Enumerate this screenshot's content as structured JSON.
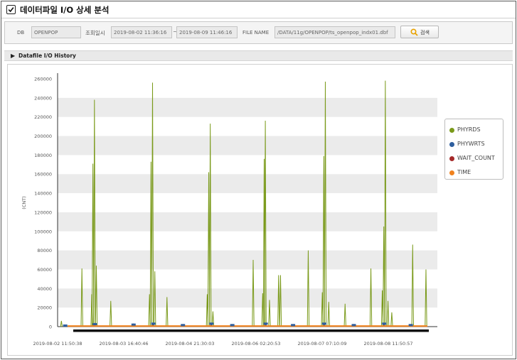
{
  "header": {
    "title": "데이터파일 I/O 상세 분석"
  },
  "search": {
    "db_label": "DB",
    "db_value": "OPENPOP",
    "period_label": "조회일시",
    "from_value": "2019-08-02 11:36:16",
    "tilde": "~",
    "to_value": "2019-08-09 11:46:16",
    "file_label": "FILE NAME",
    "file_value": "/DATA/11g/OPENPOP/ts_openpop_indx01.dbf",
    "button_label": "검색"
  },
  "section": {
    "title": "Datafile I/O History"
  },
  "legend": {
    "items": [
      {
        "label": "PHYRDS",
        "color": "#7a9a1a"
      },
      {
        "label": "PHYWRTS",
        "color": "#2e5e9e"
      },
      {
        "label": "WAIT_COUNT",
        "color": "#a52a2a"
      },
      {
        "label": "TIME",
        "color": "#f0821e"
      }
    ]
  },
  "chart_data": {
    "type": "line",
    "ylabel": "(CNT)",
    "ylim": [
      0,
      260000
    ],
    "yticks": [
      0,
      20000,
      40000,
      60000,
      80000,
      100000,
      120000,
      140000,
      160000,
      180000,
      200000,
      220000,
      240000,
      260000
    ],
    "xticks": [
      "2019-08-02 11:50:38",
      "2019-08-03 16:40:46",
      "2019-08-04 21:30:03",
      "2019-08-06 02:20:53",
      "2019-08-07 07:10:09",
      "2019-08-08 11:50:57"
    ],
    "grid": "horizontal-bands",
    "legend_position": "right",
    "x_domain": [
      0,
      100
    ],
    "series": [
      {
        "name": "PHYRDS",
        "color": "#7a9a1a",
        "points": [
          [
            1.0,
            6000
          ],
          [
            6.4,
            61000
          ],
          [
            9.0,
            34000
          ],
          [
            9.3,
            171000
          ],
          [
            9.7,
            238000
          ],
          [
            10.2,
            64000
          ],
          [
            14.0,
            27000
          ],
          [
            24.2,
            34000
          ],
          [
            24.6,
            173000
          ],
          [
            25.0,
            256000
          ],
          [
            25.6,
            58000
          ],
          [
            28.8,
            31000
          ],
          [
            39.4,
            34000
          ],
          [
            39.8,
            162000
          ],
          [
            40.2,
            213000
          ],
          [
            40.9,
            16000
          ],
          [
            51.5,
            70000
          ],
          [
            54.0,
            35000
          ],
          [
            54.4,
            176000
          ],
          [
            54.7,
            216000
          ],
          [
            55.8,
            28000
          ],
          [
            58.2,
            54000
          ],
          [
            58.7,
            54000
          ],
          [
            66.0,
            80000
          ],
          [
            69.7,
            36000
          ],
          [
            70.1,
            179000
          ],
          [
            70.5,
            257000
          ],
          [
            71.4,
            26000
          ],
          [
            75.7,
            24000
          ],
          [
            82.5,
            61000
          ],
          [
            85.5,
            38000
          ],
          [
            85.9,
            105000
          ],
          [
            86.3,
            258000
          ],
          [
            87.0,
            27000
          ],
          [
            88.0,
            15000
          ],
          [
            93.5,
            86000
          ],
          [
            97.0,
            60000
          ]
        ]
      },
      {
        "name": "PHYWRTS",
        "color": "#2e5e9e",
        "points": [
          [
            2.0,
            1500
          ],
          [
            9.8,
            3000
          ],
          [
            20.0,
            2500
          ],
          [
            25.2,
            3500
          ],
          [
            33.0,
            2000
          ],
          [
            40.5,
            3500
          ],
          [
            46.0,
            2000
          ],
          [
            54.8,
            3500
          ],
          [
            62.0,
            2000
          ],
          [
            70.2,
            3500
          ],
          [
            78.0,
            2000
          ],
          [
            86.0,
            3500
          ],
          [
            93.0,
            2000
          ]
        ]
      },
      {
        "name": "WAIT_COUNT",
        "color": "#a52a2a",
        "points": [
          [
            9.5,
            1500
          ],
          [
            25.0,
            1500
          ],
          [
            40.3,
            1500
          ],
          [
            54.6,
            1500
          ],
          [
            70.3,
            1500
          ],
          [
            86.1,
            1500
          ]
        ]
      },
      {
        "name": "TIME",
        "color": "#f0821e",
        "points": [
          [
            0.0,
            600
          ],
          [
            100.0,
            600
          ]
        ]
      }
    ]
  }
}
